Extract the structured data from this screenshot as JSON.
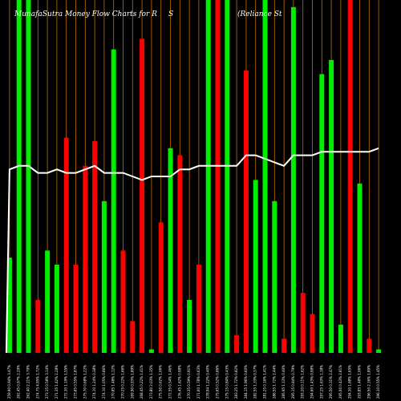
{
  "chart_data": {
    "type": "bar",
    "title": "MunafaSutra  Money Flow  Charts for R                    S              (Reliance   St",
    "title_parts": [
      "MunafaSutra  Money Flow  Charts for R",
      "S",
      "(Reliance   St"
    ],
    "xlabel": "",
    "ylabel": "",
    "ylim": [
      0,
      100
    ],
    "grid": true,
    "legend": "none",
    "categories": [
      "259.90 0.94% 3.47%",
      "262.45 0.97% 2.29%",
      "262.40 2.21% 3.79%",
      "274.75 4.95% 1.72%",
      "273.15 0.58% 3.14%",
      "271.35 1.42% 2.28%",
      "272.30 1.19% 1.55%",
      "273.85 0.55% 1.87%",
      "275.70 0.68% 1.22%",
      "274.10 1.24% 0.38%",
      "274.10 1.05% 0.86%",
      "270.85 1.48% 1.12%",
      "270.25 0.22% 1.66%",
      "269.90 0.93% 1.89%",
      "268.45 0.22% 1.41%",
      "273.80 2.03% 1.35%",
      "275.50 0.62% 1.06%",
      "272.55 0.54% 1.46%",
      "276.45 1.62% 0.98%",
      "270.35 0.59% 0.91%",
      "271.60 1.78% 0.63%",
      "278.94 1.22% 0.40%",
      "275.65 0.52% 0.86%",
      "275.15 0.84% 0.43%",
      "283.25 1.72% 0.82%",
      "284.15 1.96% 0.60%",
      "282.55 1.33% 0.37%",
      "281.25 0.16% 1.41%",
      "286.55 1.72% 2.44%",
      "285.95 1.13% 0.40%",
      "295.15 0.84% 0.79%",
      "293.20 0.11% 1.62%",
      "294.60 1.43% 0.98%",
      "297.25 1.63% 1.38%",
      "295.50 0.31% 2.47%",
      "295.00 0.43% 2.81%",
      "294.30 1.68% 1.65%",
      "293.85 1.48% 1.06%",
      "296.50 2.16% 1.89%",
      "296.10 0.55% 1.45%"
    ],
    "series": [
      {
        "values": [
          27,
          100,
          100,
          15,
          29,
          25,
          61,
          25,
          53,
          60,
          43,
          86,
          29,
          9,
          89,
          1,
          37,
          58,
          56,
          15,
          25,
          100,
          100,
          100,
          5,
          80,
          49,
          100,
          43,
          4,
          98,
          17,
          11,
          79,
          83,
          8,
          100,
          48,
          4,
          1
        ],
        "colors": [
          "green",
          "green",
          "green",
          "red",
          "green",
          "green",
          "red",
          "red",
          "red",
          "red",
          "green",
          "green",
          "red",
          "red",
          "red",
          "green",
          "red",
          "green",
          "red",
          "green",
          "red",
          "green",
          "red",
          "green",
          "red",
          "red",
          "green",
          "green",
          "green",
          "red",
          "green",
          "red",
          "red",
          "green",
          "green",
          "green",
          "red",
          "green",
          "red",
          "green"
        ]
      },
      {
        "values": [
          52,
          53,
          53,
          51,
          51,
          52,
          51,
          51,
          52,
          53,
          51,
          51,
          51,
          50,
          49,
          50,
          50,
          50,
          52,
          52,
          53,
          53,
          53,
          53,
          53,
          56,
          56,
          55,
          54,
          53,
          56,
          56,
          56,
          57,
          57,
          57,
          57,
          57,
          57,
          58
        ]
      }
    ],
    "palette": {
      "green": "#00ee00",
      "red": "#ff0000",
      "background": "#000000",
      "grid": "#c07000",
      "line": "#ffffff"
    }
  }
}
